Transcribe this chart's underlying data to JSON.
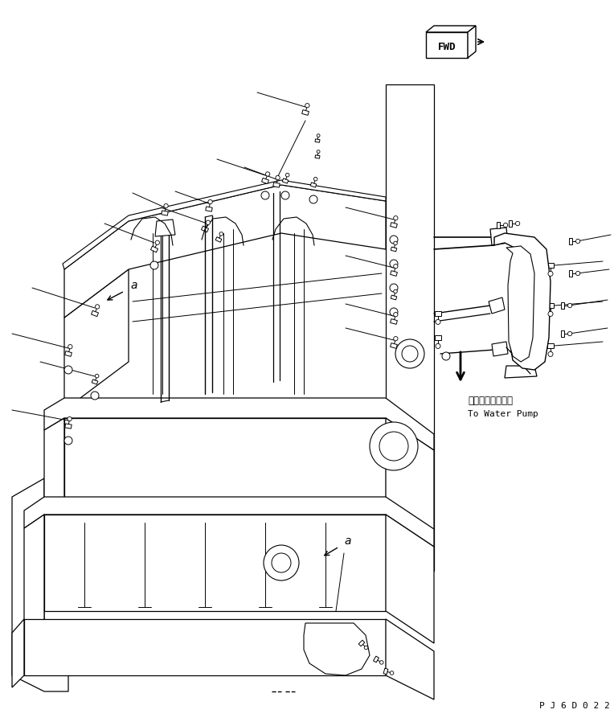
{
  "fig_width": 7.64,
  "fig_height": 8.98,
  "dpi": 100,
  "bg_color": "#ffffff",
  "lc": "#000000",
  "water_pump_jp": "ウォータポンプへ",
  "water_pump_en": "To Water Pump",
  "page_code": "P J 6 D 0 2 2",
  "fwd_text": "FWD"
}
